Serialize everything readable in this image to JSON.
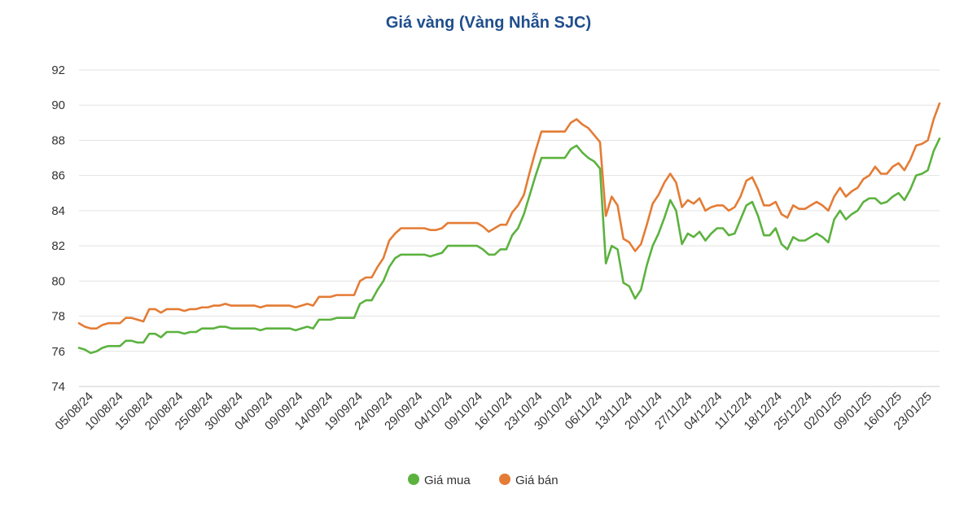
{
  "chart_data": {
    "type": "line",
    "title": "Giá vàng (Vàng Nhẫn SJC)",
    "ylim": [
      74,
      92
    ],
    "yticks": [
      74,
      76,
      78,
      80,
      82,
      84,
      86,
      88,
      90,
      92
    ],
    "grid": true,
    "legend_position": "bottom-center",
    "xtick_labels": [
      "05/08/24",
      "10/08/24",
      "15/08/24",
      "20/08/24",
      "25/08/24",
      "30/08/24",
      "04/09/24",
      "09/09/24",
      "14/09/24",
      "19/09/24",
      "24/09/24",
      "29/09/24",
      "04/10/24",
      "09/10/24",
      "16/10/24",
      "23/10/24",
      "30/10/24",
      "06/11/24",
      "13/11/24",
      "20/11/24",
      "27/11/24",
      "04/12/24",
      "11/12/24",
      "18/12/24",
      "25/12/24",
      "02/01/25",
      "09/01/25",
      "16/01/25",
      "23/01/25"
    ],
    "series": [
      {
        "name": "Giá mua",
        "color": "#5cb23f",
        "values": [
          76.2,
          76.1,
          75.9,
          76.0,
          76.2,
          76.3,
          76.3,
          76.3,
          76.6,
          76.6,
          76.5,
          76.5,
          77.0,
          77.0,
          76.8,
          77.1,
          77.1,
          77.1,
          77.0,
          77.1,
          77.1,
          77.3,
          77.3,
          77.3,
          77.4,
          77.4,
          77.3,
          77.3,
          77.3,
          77.3,
          77.3,
          77.2,
          77.3,
          77.3,
          77.3,
          77.3,
          77.3,
          77.2,
          77.3,
          77.4,
          77.3,
          77.8,
          77.8,
          77.8,
          77.9,
          77.9,
          77.9,
          77.9,
          78.7,
          78.9,
          78.9,
          79.5,
          80.0,
          80.8,
          81.3,
          81.5,
          81.5,
          81.5,
          81.5,
          81.5,
          81.4,
          81.5,
          81.6,
          82.0,
          82.0,
          82.0,
          82.0,
          82.0,
          82.0,
          81.8,
          81.5,
          81.5,
          81.8,
          81.8,
          82.6,
          83.0,
          83.8,
          84.9,
          86.0,
          87.0,
          87.0,
          87.0,
          87.0,
          87.0,
          87.5,
          87.7,
          87.3,
          87.0,
          86.8,
          86.4,
          81.0,
          82.0,
          81.8,
          79.9,
          79.7,
          79.0,
          79.5,
          80.9,
          82.0,
          82.7,
          83.6,
          84.6,
          84.0,
          82.1,
          82.7,
          82.5,
          82.8,
          82.3,
          82.7,
          83.0,
          83.0,
          82.6,
          82.7,
          83.5,
          84.3,
          84.5,
          83.7,
          82.6,
          82.6,
          83.0,
          82.1,
          81.8,
          82.5,
          82.3,
          82.3,
          82.5,
          82.7,
          82.5,
          82.2,
          83.5,
          84.0,
          83.5,
          83.8,
          84.0,
          84.5,
          84.7,
          84.7,
          84.4,
          84.5,
          84.8,
          85.0,
          84.6,
          85.2,
          86.0,
          86.1,
          86.3,
          87.4,
          88.1
        ]
      },
      {
        "name": "Giá bán",
        "color": "#e47c35",
        "values": [
          77.6,
          77.4,
          77.3,
          77.3,
          77.5,
          77.6,
          77.6,
          77.6,
          77.9,
          77.9,
          77.8,
          77.7,
          78.4,
          78.4,
          78.2,
          78.4,
          78.4,
          78.4,
          78.3,
          78.4,
          78.4,
          78.5,
          78.5,
          78.6,
          78.6,
          78.7,
          78.6,
          78.6,
          78.6,
          78.6,
          78.6,
          78.5,
          78.6,
          78.6,
          78.6,
          78.6,
          78.6,
          78.5,
          78.6,
          78.7,
          78.6,
          79.1,
          79.1,
          79.1,
          79.2,
          79.2,
          79.2,
          79.2,
          80.0,
          80.2,
          80.2,
          80.8,
          81.3,
          82.3,
          82.7,
          83.0,
          83.0,
          83.0,
          83.0,
          83.0,
          82.9,
          82.9,
          83.0,
          83.3,
          83.3,
          83.3,
          83.3,
          83.3,
          83.3,
          83.1,
          82.8,
          83.0,
          83.2,
          83.2,
          83.9,
          84.3,
          84.9,
          86.2,
          87.4,
          88.5,
          88.5,
          88.5,
          88.5,
          88.5,
          89.0,
          89.2,
          88.9,
          88.7,
          88.3,
          87.9,
          83.7,
          84.8,
          84.3,
          82.4,
          82.2,
          81.7,
          82.1,
          83.2,
          84.4,
          84.9,
          85.6,
          86.1,
          85.6,
          84.2,
          84.6,
          84.4,
          84.7,
          84.0,
          84.2,
          84.3,
          84.3,
          84.0,
          84.2,
          84.8,
          85.7,
          85.9,
          85.2,
          84.3,
          84.3,
          84.5,
          83.8,
          83.6,
          84.3,
          84.1,
          84.1,
          84.3,
          84.5,
          84.3,
          84.0,
          84.8,
          85.3,
          84.8,
          85.1,
          85.3,
          85.8,
          86.0,
          86.5,
          86.1,
          86.1,
          86.5,
          86.7,
          86.3,
          86.9,
          87.7,
          87.8,
          88.0,
          89.2,
          90.1
        ]
      }
    ]
  }
}
